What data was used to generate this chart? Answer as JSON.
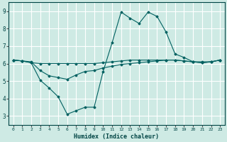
{
  "xlabel": "Humidex (Indice chaleur)",
  "background_color": "#ceeae4",
  "grid_color": "#ffffff",
  "line_color": "#006060",
  "xlim": [
    -0.5,
    23.5
  ],
  "ylim": [
    2.5,
    9.5
  ],
  "xticks": [
    0,
    1,
    2,
    3,
    4,
    5,
    6,
    7,
    8,
    9,
    10,
    11,
    12,
    13,
    14,
    15,
    16,
    17,
    18,
    19,
    20,
    21,
    22,
    23
  ],
  "yticks": [
    3,
    4,
    5,
    6,
    7,
    8,
    9
  ],
  "line1_x": [
    0,
    1,
    2,
    3,
    4,
    5,
    6,
    7,
    8,
    9,
    10,
    11,
    12,
    13,
    14,
    15,
    16,
    17,
    18,
    19,
    20,
    21,
    22,
    23
  ],
  "line1_y": [
    6.2,
    6.15,
    6.05,
    6.0,
    6.0,
    6.0,
    6.0,
    6.0,
    6.0,
    6.0,
    6.05,
    6.1,
    6.15,
    6.2,
    6.2,
    6.2,
    6.2,
    6.2,
    6.2,
    6.15,
    6.1,
    6.1,
    6.1,
    6.2
  ],
  "line2_x": [
    0,
    1,
    2,
    3,
    4,
    5,
    6,
    7,
    8,
    9,
    10,
    11,
    12,
    13,
    14,
    15,
    16,
    17,
    18,
    19,
    20,
    21,
    22,
    23
  ],
  "line2_y": [
    6.2,
    6.15,
    6.05,
    5.05,
    4.6,
    4.1,
    3.1,
    3.3,
    3.5,
    3.5,
    5.55,
    7.2,
    8.95,
    8.6,
    8.3,
    8.95,
    8.7,
    7.8,
    6.55,
    6.35,
    6.1,
    6.05,
    6.1,
    6.2
  ],
  "line3_x": [
    0,
    1,
    2,
    3,
    4,
    5,
    6,
    7,
    8,
    9,
    10,
    11,
    12,
    13,
    14,
    15,
    16,
    17,
    18,
    19,
    20,
    21,
    22,
    23
  ],
  "line3_y": [
    6.2,
    6.15,
    6.1,
    5.6,
    5.3,
    5.2,
    5.1,
    5.35,
    5.55,
    5.6,
    5.75,
    5.85,
    5.95,
    6.0,
    6.05,
    6.1,
    6.15,
    6.2,
    6.2,
    6.15,
    6.1,
    6.05,
    6.1,
    6.2
  ]
}
